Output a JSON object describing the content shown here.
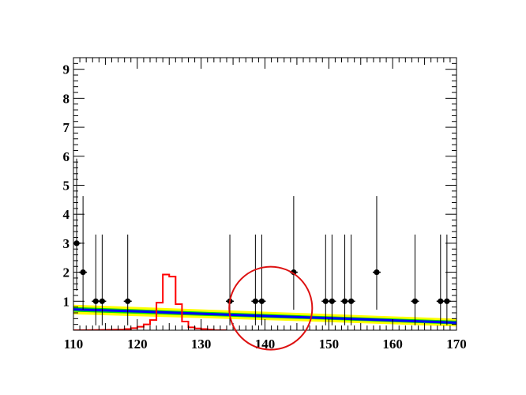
{
  "chart_data": {
    "type": "scatter",
    "title": "",
    "xlabel": "",
    "ylabel": "",
    "xlim": [
      110,
      170
    ],
    "ylim": [
      0,
      9.4
    ],
    "x_ticks": [
      110,
      120,
      130,
      140,
      150,
      160,
      170
    ],
    "y_ticks": [
      1,
      2,
      3,
      4,
      5,
      6,
      7,
      8,
      9
    ],
    "grid": false,
    "series": [
      {
        "role": "data-points-with-error-bars",
        "color": "#000000",
        "points": [
          {
            "x": 110.5,
            "y": 3,
            "lo": 1.37,
            "hi": 5.92
          },
          {
            "x": 111.5,
            "y": 2,
            "lo": 0.71,
            "hi": 4.63
          },
          {
            "x": 113.5,
            "y": 1,
            "lo": 0.17,
            "hi": 3.3
          },
          {
            "x": 114.5,
            "y": 1,
            "lo": 0.17,
            "hi": 3.3
          },
          {
            "x": 118.5,
            "y": 1,
            "lo": 0.17,
            "hi": 3.3
          },
          {
            "x": 134.5,
            "y": 1,
            "lo": 0.17,
            "hi": 3.3
          },
          {
            "x": 138.5,
            "y": 1,
            "lo": 0.17,
            "hi": 3.3
          },
          {
            "x": 139.5,
            "y": 1,
            "lo": 0.17,
            "hi": 3.3
          },
          {
            "x": 144.5,
            "y": 2,
            "lo": 0.71,
            "hi": 4.63
          },
          {
            "x": 149.5,
            "y": 1,
            "lo": 0.17,
            "hi": 3.3
          },
          {
            "x": 150.5,
            "y": 1,
            "lo": 0.17,
            "hi": 3.3
          },
          {
            "x": 152.5,
            "y": 1,
            "lo": 0.17,
            "hi": 3.3
          },
          {
            "x": 153.5,
            "y": 1,
            "lo": 0.17,
            "hi": 3.3
          },
          {
            "x": 157.5,
            "y": 2,
            "lo": 0.71,
            "hi": 4.63
          },
          {
            "x": 163.5,
            "y": 1,
            "lo": 0.17,
            "hi": 3.3
          },
          {
            "x": 167.5,
            "y": 1,
            "lo": 0.17,
            "hi": 3.3
          },
          {
            "x": 168.5,
            "y": 1,
            "lo": 0.17,
            "hi": 3.3
          }
        ]
      },
      {
        "role": "background-fit",
        "color": "#0000ff",
        "x": [
          110,
          120,
          130,
          140,
          150,
          160,
          170
        ],
        "y": [
          0.72,
          0.65,
          0.57,
          0.49,
          0.42,
          0.34,
          0.26
        ]
      },
      {
        "role": "uncertainty-band-inner",
        "color": "#00dd00",
        "x": [
          110,
          130,
          150,
          170
        ],
        "lower": [
          0.64,
          0.5,
          0.36,
          0.2
        ],
        "upper": [
          0.8,
          0.64,
          0.48,
          0.33
        ]
      },
      {
        "role": "uncertainty-band-outer",
        "color": "#ffff00",
        "x": [
          110,
          130,
          150,
          170
        ],
        "lower": [
          0.55,
          0.42,
          0.28,
          0.13
        ],
        "upper": [
          0.88,
          0.72,
          0.56,
          0.4
        ]
      },
      {
        "role": "signal-histogram",
        "color": "#ff0000",
        "bin_width": 1,
        "bins": [
          {
            "x0": 110,
            "v": 0
          },
          {
            "x0": 117,
            "v": 0.02
          },
          {
            "x0": 118,
            "v": 0.04
          },
          {
            "x0": 119,
            "v": 0.07
          },
          {
            "x0": 120,
            "v": 0.12
          },
          {
            "x0": 121,
            "v": 0.2
          },
          {
            "x0": 122,
            "v": 0.35
          },
          {
            "x0": 123,
            "v": 0.95
          },
          {
            "x0": 124,
            "v": 1.92
          },
          {
            "x0": 125,
            "v": 1.85
          },
          {
            "x0": 126,
            "v": 0.9
          },
          {
            "x0": 127,
            "v": 0.3
          },
          {
            "x0": 128,
            "v": 0.1
          },
          {
            "x0": 129,
            "v": 0.06
          },
          {
            "x0": 130,
            "v": 0.04
          },
          {
            "x0": 131,
            "v": 0.02
          },
          {
            "x0": 132,
            "v": 0
          },
          {
            "x0": 133,
            "v": 0
          }
        ]
      }
    ],
    "annotations": [
      {
        "type": "circle",
        "color": "#dd1111",
        "cx": 140.9,
        "cy": 0.76,
        "r_x_units": 6.5
      }
    ]
  }
}
